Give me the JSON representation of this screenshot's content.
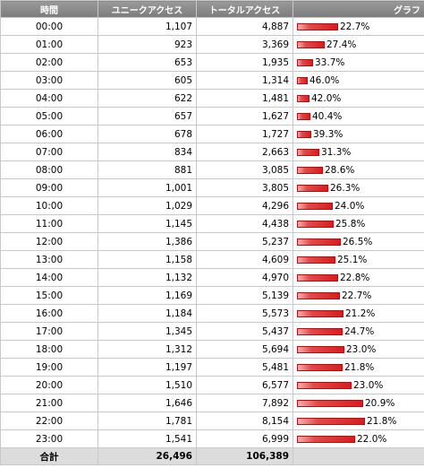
{
  "headers": {
    "hour": "時間",
    "unique": "ユニークアクセス",
    "total": "トータルアクセス",
    "graph": "グラフ"
  },
  "bar_color": "#d81d1d",
  "bar_max_total": 8154,
  "rows": [
    {
      "hour": "00:00",
      "unique": "1,107",
      "total": "4,887",
      "total_value": 4887,
      "percent": "22.7%"
    },
    {
      "hour": "01:00",
      "unique": "923",
      "total": "3,369",
      "total_value": 3369,
      "percent": "27.4%"
    },
    {
      "hour": "02:00",
      "unique": "653",
      "total": "1,935",
      "total_value": 1935,
      "percent": "33.7%"
    },
    {
      "hour": "03:00",
      "unique": "605",
      "total": "1,314",
      "total_value": 1314,
      "percent": "46.0%"
    },
    {
      "hour": "04:00",
      "unique": "622",
      "total": "1,481",
      "total_value": 1481,
      "percent": "42.0%"
    },
    {
      "hour": "05:00",
      "unique": "657",
      "total": "1,627",
      "total_value": 1627,
      "percent": "40.4%"
    },
    {
      "hour": "06:00",
      "unique": "678",
      "total": "1,727",
      "total_value": 1727,
      "percent": "39.3%"
    },
    {
      "hour": "07:00",
      "unique": "834",
      "total": "2,663",
      "total_value": 2663,
      "percent": "31.3%"
    },
    {
      "hour": "08:00",
      "unique": "881",
      "total": "3,085",
      "total_value": 3085,
      "percent": "28.6%"
    },
    {
      "hour": "09:00",
      "unique": "1,001",
      "total": "3,805",
      "total_value": 3805,
      "percent": "26.3%"
    },
    {
      "hour": "10:00",
      "unique": "1,029",
      "total": "4,296",
      "total_value": 4296,
      "percent": "24.0%"
    },
    {
      "hour": "11:00",
      "unique": "1,145",
      "total": "4,438",
      "total_value": 4438,
      "percent": "25.8%"
    },
    {
      "hour": "12:00",
      "unique": "1,386",
      "total": "5,237",
      "total_value": 5237,
      "percent": "26.5%"
    },
    {
      "hour": "13:00",
      "unique": "1,158",
      "total": "4,609",
      "total_value": 4609,
      "percent": "25.1%"
    },
    {
      "hour": "14:00",
      "unique": "1,132",
      "total": "4,970",
      "total_value": 4970,
      "percent": "22.8%"
    },
    {
      "hour": "15:00",
      "unique": "1,169",
      "total": "5,139",
      "total_value": 5139,
      "percent": "22.7%"
    },
    {
      "hour": "16:00",
      "unique": "1,184",
      "total": "5,573",
      "total_value": 5573,
      "percent": "21.2%"
    },
    {
      "hour": "17:00",
      "unique": "1,345",
      "total": "5,437",
      "total_value": 5437,
      "percent": "24.7%"
    },
    {
      "hour": "18:00",
      "unique": "1,312",
      "total": "5,694",
      "total_value": 5694,
      "percent": "23.0%"
    },
    {
      "hour": "19:00",
      "unique": "1,197",
      "total": "5,481",
      "total_value": 5481,
      "percent": "21.8%"
    },
    {
      "hour": "20:00",
      "unique": "1,510",
      "total": "6,577",
      "total_value": 6577,
      "percent": "23.0%"
    },
    {
      "hour": "21:00",
      "unique": "1,646",
      "total": "7,892",
      "total_value": 7892,
      "percent": "20.9%"
    },
    {
      "hour": "22:00",
      "unique": "1,781",
      "total": "8,154",
      "total_value": 8154,
      "percent": "21.8%"
    },
    {
      "hour": "23:00",
      "unique": "1,541",
      "total": "6,999",
      "total_value": 6999,
      "percent": "22.0%"
    }
  ],
  "footer": {
    "label": "合計",
    "unique": "26,496",
    "total": "106,389"
  }
}
